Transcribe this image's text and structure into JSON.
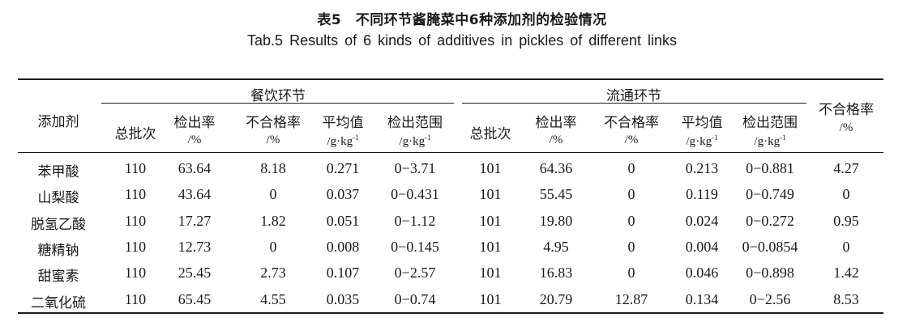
{
  "title_cn": "表5　不同环节酱腌菜中6种添加剂的检验情况",
  "title_en": "Tab.5   Results of 6 kinds of additives in pickles of different links",
  "group_labels": {
    "catering": "餐饮环节",
    "circulation": "流通环节"
  },
  "headers": {
    "additive": "添加剂",
    "total_batches": "总批次",
    "detection_rate": "检出率",
    "unqualified_rate": "不合格率",
    "average": "平均值",
    "detection_range": "检出范围",
    "percent_unit": "/%",
    "conc_unit_base": "/g·kg",
    "conc_unit_exp": "-1"
  },
  "rows": [
    {
      "additive": "苯甲酸",
      "c_total": "110",
      "c_rate": "63.64",
      "c_unq": "8.18",
      "c_avg": "0.271",
      "c_range": "0−3.71",
      "l_total": "101",
      "l_rate": "64.36",
      "l_unq": "0",
      "l_avg": "0.213",
      "l_range": "0−0.881",
      "unq": "4.27"
    },
    {
      "additive": "山梨酸",
      "c_total": "110",
      "c_rate": "43.64",
      "c_unq": "0",
      "c_avg": "0.037",
      "c_range": "0−0.431",
      "l_total": "101",
      "l_rate": "55.45",
      "l_unq": "0",
      "l_avg": "0.119",
      "l_range": "0−0.749",
      "unq": "0"
    },
    {
      "additive": "脱氢乙酸",
      "c_total": "110",
      "c_rate": "17.27",
      "c_unq": "1.82",
      "c_avg": "0.051",
      "c_range": "0−1.12",
      "l_total": "101",
      "l_rate": "19.80",
      "l_unq": "0",
      "l_avg": "0.024",
      "l_range": "0−0.272",
      "unq": "0.95"
    },
    {
      "additive": "糖精钠",
      "c_total": "110",
      "c_rate": "12.73",
      "c_unq": "0",
      "c_avg": "0.008",
      "c_range": "0−0.145",
      "l_total": "101",
      "l_rate": "4.95",
      "l_unq": "0",
      "l_avg": "0.004",
      "l_range": "0−0.0854",
      "unq": "0"
    },
    {
      "additive": "甜蜜素",
      "c_total": "110",
      "c_rate": "25.45",
      "c_unq": "2.73",
      "c_avg": "0.107",
      "c_range": "0−2.57",
      "l_total": "101",
      "l_rate": "16.83",
      "l_unq": "0",
      "l_avg": "0.046",
      "l_range": "0−0.898",
      "unq": "1.42"
    },
    {
      "additive": "二氧化硫",
      "c_total": "110",
      "c_rate": "65.45",
      "c_unq": "4.55",
      "c_avg": "0.035",
      "c_range": "0−0.74",
      "l_total": "101",
      "l_rate": "20.79",
      "l_unq": "12.87",
      "l_avg": "0.134",
      "l_range": "0−2.56",
      "unq": "8.53"
    }
  ]
}
